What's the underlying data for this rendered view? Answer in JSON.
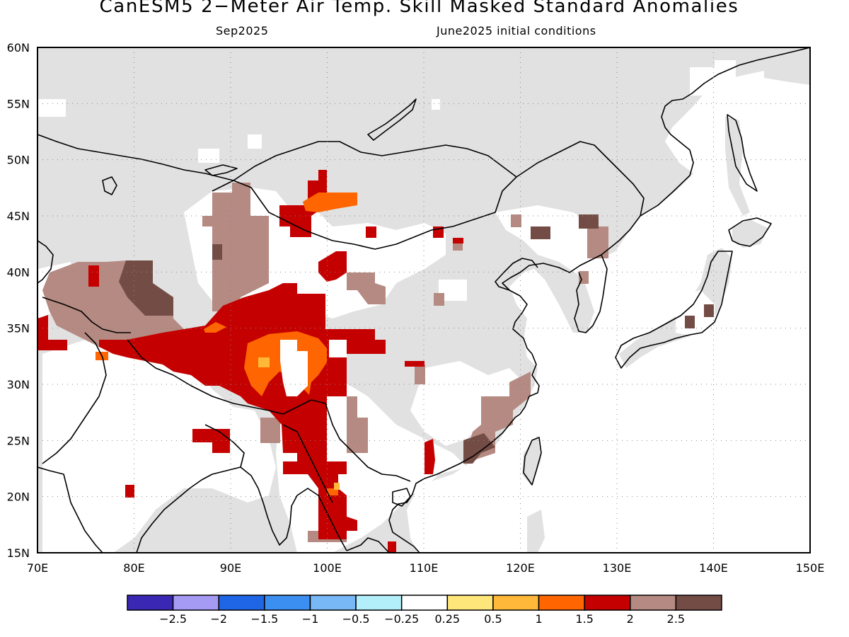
{
  "title": "CanESM5 2−Meter Air Temp. Skill Masked Standard Anomalies",
  "subtitle_left": "Sep2025",
  "subtitle_right": "June2025 initial conditions",
  "map": {
    "lon_range": [
      70,
      150
    ],
    "lat_range": [
      15,
      60
    ],
    "lon_ticks": [
      "70E",
      "80E",
      "90E",
      "100E",
      "110E",
      "120E",
      "130E",
      "140E",
      "150E"
    ],
    "lat_ticks": [
      "15N",
      "20N",
      "25N",
      "30N",
      "35N",
      "40N",
      "45N",
      "50N",
      "55N",
      "60N"
    ],
    "grid_lines": "dotted",
    "masked_color": "#e1e1e1",
    "ocean_color": "#ffffff",
    "coastline_color": "#000000"
  },
  "colorbar": {
    "colors": [
      "#3a27b4",
      "#a59af4",
      "#1f66e6",
      "#3b8ff0",
      "#78b8f6",
      "#b3eefb",
      "#ffffff",
      "#ffe67a",
      "#ffb83a",
      "#ff6500",
      "#c50000",
      "#b48a82",
      "#734d45"
    ],
    "labels": [
      "−2.5",
      "−2",
      "−1.5",
      "−1",
      "−0.5",
      "−0.25",
      "0.25",
      "0.5",
      "1",
      "1.5",
      "2",
      "2.5"
    ]
  }
}
